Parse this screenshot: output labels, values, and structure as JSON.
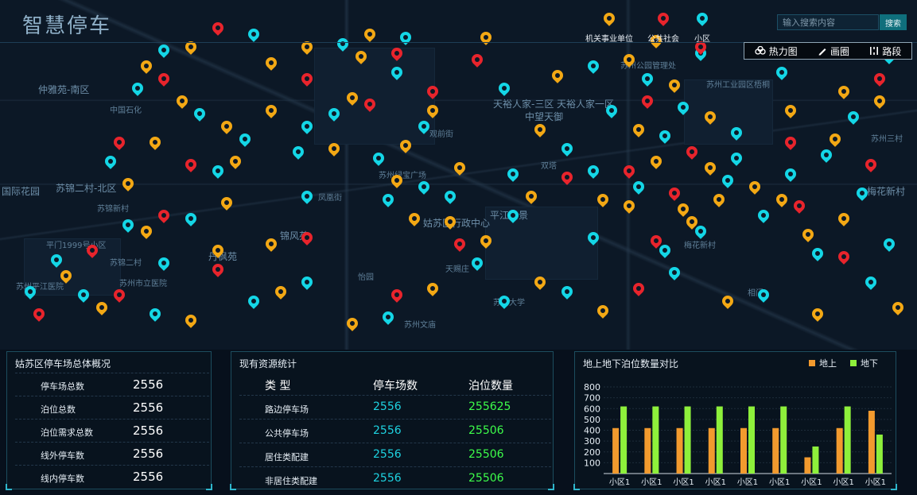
{
  "app": {
    "title": "智慧停车"
  },
  "legend": [
    {
      "label": "机关事业单位",
      "color": "#f3a814"
    },
    {
      "label": "公共社会",
      "color": "#e8242c"
    },
    {
      "label": "小区",
      "color": "#14d6e6"
    }
  ],
  "search": {
    "placeholder": "输入搜索内容",
    "button": "搜索"
  },
  "tools": {
    "heatmap": "热力图",
    "draw": "画圈",
    "route": "路段"
  },
  "map": {
    "labels": [
      "仲雅苑-南区",
      "中国石化",
      "苏锦二村-北区",
      "国际花园",
      "苏锦新村",
      "平门1999号小区",
      "苏锦二村",
      "苏州平江医院",
      "天裕人家-三区",
      "天裕人家一区",
      "中望天御",
      "苏州公园管理处",
      "苏州工业园区梧桐",
      "梅花新村",
      "苏州三村",
      "平江怡景",
      "姑苏区行政中心",
      "锦风苑",
      "丹枫苑",
      "苏州绿宝广场",
      "苏州市立医院",
      "天赐庄",
      "梅花新村",
      "苏州大学",
      "相门",
      "苏州文庙",
      "凤凰街",
      "怡园",
      "观前街",
      "双塔"
    ],
    "pins": [
      {
        "type": "y",
        "lng": 0.23,
        "lat": 0.72
      },
      {
        "type": "r",
        "lng": 0.23,
        "lat": 0.78
      },
      {
        "type": "c",
        "lng": 0.17,
        "lat": 0.76
      },
      {
        "type": "y",
        "lng": 0.29,
        "lat": 0.7
      },
      {
        "type": "y",
        "lng": 0.15,
        "lat": 0.66
      },
      {
        "type": "c",
        "lng": 0.13,
        "lat": 0.64
      },
      {
        "type": "r",
        "lng": 0.17,
        "lat": 0.61
      },
      {
        "type": "y",
        "lng": 0.24,
        "lat": 0.57
      },
      {
        "type": "c",
        "lng": 0.2,
        "lat": 0.62
      },
      {
        "type": "y",
        "lng": 0.13,
        "lat": 0.51
      },
      {
        "type": "c",
        "lng": 0.11,
        "lat": 0.44
      },
      {
        "type": "r",
        "lng": 0.12,
        "lat": 0.38
      },
      {
        "type": "y",
        "lng": 0.16,
        "lat": 0.38
      },
      {
        "type": "c",
        "lng": 0.23,
        "lat": 0.47
      },
      {
        "type": "r",
        "lng": 0.2,
        "lat": 0.45
      },
      {
        "type": "y",
        "lng": 0.25,
        "lat": 0.44
      },
      {
        "type": "c",
        "lng": 0.26,
        "lat": 0.37
      },
      {
        "type": "c",
        "lng": 0.33,
        "lat": 0.33
      },
      {
        "type": "y",
        "lng": 0.29,
        "lat": 0.28
      },
      {
        "type": "r",
        "lng": 0.33,
        "lat": 0.18
      },
      {
        "type": "y",
        "lng": 0.29,
        "lat": 0.13
      },
      {
        "type": "c",
        "lng": 0.32,
        "lat": 0.41
      },
      {
        "type": "y",
        "lng": 0.36,
        "lat": 0.4
      },
      {
        "type": "c",
        "lng": 0.33,
        "lat": 0.55
      },
      {
        "type": "r",
        "lng": 0.33,
        "lat": 0.68
      },
      {
        "type": "c",
        "lng": 0.36,
        "lat": 0.29
      },
      {
        "type": "y",
        "lng": 0.38,
        "lat": 0.24
      },
      {
        "type": "r",
        "lng": 0.4,
        "lat": 0.26
      },
      {
        "type": "c",
        "lng": 0.41,
        "lat": 0.43
      },
      {
        "type": "y",
        "lng": 0.43,
        "lat": 0.5
      },
      {
        "type": "c",
        "lng": 0.42,
        "lat": 0.56
      },
      {
        "type": "y",
        "lng": 0.45,
        "lat": 0.62
      },
      {
        "type": "c",
        "lng": 0.46,
        "lat": 0.52
      },
      {
        "type": "y",
        "lng": 0.44,
        "lat": 0.39
      },
      {
        "type": "c",
        "lng": 0.46,
        "lat": 0.33
      },
      {
        "type": "y",
        "lng": 0.47,
        "lat": 0.28
      },
      {
        "type": "r",
        "lng": 0.47,
        "lat": 0.22
      },
      {
        "type": "y",
        "lng": 0.5,
        "lat": 0.46
      },
      {
        "type": "c",
        "lng": 0.49,
        "lat": 0.55
      },
      {
        "type": "y",
        "lng": 0.49,
        "lat": 0.63
      },
      {
        "type": "r",
        "lng": 0.5,
        "lat": 0.7
      },
      {
        "type": "c",
        "lng": 0.52,
        "lat": 0.76
      },
      {
        "type": "y",
        "lng": 0.53,
        "lat": 0.69
      },
      {
        "type": "c",
        "lng": 0.56,
        "lat": 0.61
      },
      {
        "type": "y",
        "lng": 0.58,
        "lat": 0.55
      },
      {
        "type": "c",
        "lng": 0.56,
        "lat": 0.48
      },
      {
        "type": "r",
        "lng": 0.62,
        "lat": 0.49
      },
      {
        "type": "c",
        "lng": 0.62,
        "lat": 0.4
      },
      {
        "type": "y",
        "lng": 0.59,
        "lat": 0.34
      },
      {
        "type": "c",
        "lng": 0.65,
        "lat": 0.47
      },
      {
        "type": "y",
        "lng": 0.66,
        "lat": 0.56
      },
      {
        "type": "c",
        "lng": 0.65,
        "lat": 0.68
      },
      {
        "type": "y",
        "lng": 0.69,
        "lat": 0.58
      },
      {
        "type": "c",
        "lng": 0.7,
        "lat": 0.52
      },
      {
        "type": "r",
        "lng": 0.69,
        "lat": 0.47
      },
      {
        "type": "y",
        "lng": 0.72,
        "lat": 0.44
      },
      {
        "type": "c",
        "lng": 0.73,
        "lat": 0.36
      },
      {
        "type": "r",
        "lng": 0.74,
        "lat": 0.54
      },
      {
        "type": "y",
        "lng": 0.75,
        "lat": 0.59
      },
      {
        "type": "c",
        "lng": 0.73,
        "lat": 0.72
      },
      {
        "type": "y",
        "lng": 0.76,
        "lat": 0.63
      },
      {
        "type": "r",
        "lng": 0.72,
        "lat": 0.69
      },
      {
        "type": "c",
        "lng": 0.77,
        "lat": 0.66
      },
      {
        "type": "y",
        "lng": 0.79,
        "lat": 0.56
      },
      {
        "type": "c",
        "lng": 0.8,
        "lat": 0.5
      },
      {
        "type": "y",
        "lng": 0.78,
        "lat": 0.46
      },
      {
        "type": "r",
        "lng": 0.76,
        "lat": 0.41
      },
      {
        "type": "c",
        "lng": 0.81,
        "lat": 0.43
      },
      {
        "type": "y",
        "lng": 0.83,
        "lat": 0.52
      },
      {
        "type": "c",
        "lng": 0.84,
        "lat": 0.61
      },
      {
        "type": "y",
        "lng": 0.86,
        "lat": 0.56
      },
      {
        "type": "c",
        "lng": 0.87,
        "lat": 0.48
      },
      {
        "type": "r",
        "lng": 0.88,
        "lat": 0.58
      },
      {
        "type": "y",
        "lng": 0.89,
        "lat": 0.67
      },
      {
        "type": "c",
        "lng": 0.9,
        "lat": 0.73
      },
      {
        "type": "y",
        "lng": 0.93,
        "lat": 0.62
      },
      {
        "type": "c",
        "lng": 0.95,
        "lat": 0.54
      },
      {
        "type": "r",
        "lng": 0.96,
        "lat": 0.45
      },
      {
        "type": "y",
        "lng": 0.92,
        "lat": 0.37
      },
      {
        "type": "c",
        "lng": 0.94,
        "lat": 0.3
      },
      {
        "type": "y",
        "lng": 0.97,
        "lat": 0.25
      },
      {
        "type": "r",
        "lng": 0.97,
        "lat": 0.18
      },
      {
        "type": "c",
        "lng": 0.98,
        "lat": 0.11
      },
      {
        "type": "y",
        "lng": 0.93,
        "lat": 0.22
      },
      {
        "type": "c",
        "lng": 0.91,
        "lat": 0.42
      },
      {
        "type": "y",
        "lng": 0.87,
        "lat": 0.28
      },
      {
        "type": "r",
        "lng": 0.87,
        "lat": 0.38
      },
      {
        "type": "c",
        "lng": 0.86,
        "lat": 0.16
      },
      {
        "type": "y",
        "lng": 0.9,
        "lat": 0.09
      },
      {
        "type": "c",
        "lng": 0.81,
        "lat": 0.35
      },
      {
        "type": "y",
        "lng": 0.78,
        "lat": 0.3
      },
      {
        "type": "c",
        "lng": 0.75,
        "lat": 0.27
      },
      {
        "type": "y",
        "lng": 0.7,
        "lat": 0.34
      },
      {
        "type": "r",
        "lng": 0.71,
        "lat": 0.25
      },
      {
        "type": "c",
        "lng": 0.71,
        "lat": 0.18
      },
      {
        "type": "y",
        "lng": 0.69,
        "lat": 0.12
      },
      {
        "type": "c",
        "lng": 0.67,
        "lat": 0.28
      },
      {
        "type": "y",
        "lng": 0.74,
        "lat": 0.2
      },
      {
        "type": "c",
        "lng": 0.77,
        "lat": 0.1
      },
      {
        "type": "r",
        "lng": 0.77,
        "lat": 0.08
      },
      {
        "type": "y",
        "lng": 0.72,
        "lat": 0.06
      },
      {
        "type": "c",
        "lng": 0.65,
        "lat": 0.14
      },
      {
        "type": "y",
        "lng": 0.61,
        "lat": 0.17
      },
      {
        "type": "c",
        "lng": 0.55,
        "lat": 0.21
      },
      {
        "type": "r",
        "lng": 0.52,
        "lat": 0.12
      },
      {
        "type": "y",
        "lng": 0.53,
        "lat": 0.05
      },
      {
        "type": "c",
        "lng": 0.44,
        "lat": 0.05
      },
      {
        "type": "y",
        "lng": 0.4,
        "lat": 0.04
      },
      {
        "type": "r",
        "lng": 0.43,
        "lat": 0.1
      },
      {
        "type": "c",
        "lng": 0.43,
        "lat": 0.16
      },
      {
        "type": "y",
        "lng": 0.39,
        "lat": 0.11
      },
      {
        "type": "c",
        "lng": 0.37,
        "lat": 0.07
      },
      {
        "type": "y",
        "lng": 0.33,
        "lat": 0.08
      },
      {
        "type": "c",
        "lng": 0.27,
        "lat": 0.04
      },
      {
        "type": "r",
        "lng": 0.23,
        "lat": 0.02
      },
      {
        "type": "y",
        "lng": 0.2,
        "lat": 0.08
      },
      {
        "type": "c",
        "lng": 0.17,
        "lat": 0.09
      },
      {
        "type": "y",
        "lng": 0.15,
        "lat": 0.14
      },
      {
        "type": "c",
        "lng": 0.14,
        "lat": 0.21
      },
      {
        "type": "r",
        "lng": 0.17,
        "lat": 0.18
      },
      {
        "type": "y",
        "lng": 0.19,
        "lat": 0.25
      },
      {
        "type": "c",
        "lng": 0.21,
        "lat": 0.29
      },
      {
        "type": "y",
        "lng": 0.24,
        "lat": 0.33
      },
      {
        "type": "r",
        "lng": 0.03,
        "lat": 0.92
      },
      {
        "type": "c",
        "lng": 0.02,
        "lat": 0.85
      },
      {
        "type": "y",
        "lng": 0.06,
        "lat": 0.8
      },
      {
        "type": "c",
        "lng": 0.08,
        "lat": 0.86
      },
      {
        "type": "y",
        "lng": 0.1,
        "lat": 0.9
      },
      {
        "type": "c",
        "lng": 0.05,
        "lat": 0.75
      },
      {
        "type": "r",
        "lng": 0.09,
        "lat": 0.72
      },
      {
        "type": "c",
        "lng": 0.27,
        "lat": 0.88
      },
      {
        "type": "y",
        "lng": 0.3,
        "lat": 0.85
      },
      {
        "type": "c",
        "lng": 0.33,
        "lat": 0.82
      },
      {
        "type": "r",
        "lng": 0.43,
        "lat": 0.86
      },
      {
        "type": "y",
        "lng": 0.47,
        "lat": 0.84
      },
      {
        "type": "c",
        "lng": 0.55,
        "lat": 0.88
      },
      {
        "type": "y",
        "lng": 0.59,
        "lat": 0.82
      },
      {
        "type": "c",
        "lng": 0.62,
        "lat": 0.85
      },
      {
        "type": "y",
        "lng": 0.66,
        "lat": 0.91
      },
      {
        "type": "r",
        "lng": 0.7,
        "lat": 0.84
      },
      {
        "type": "c",
        "lng": 0.74,
        "lat": 0.79
      },
      {
        "type": "y",
        "lng": 0.8,
        "lat": 0.88
      },
      {
        "type": "c",
        "lng": 0.84,
        "lat": 0.86
      },
      {
        "type": "y",
        "lng": 0.9,
        "lat": 0.92
      },
      {
        "type": "c",
        "lng": 0.96,
        "lat": 0.82
      },
      {
        "type": "y",
        "lng": 0.99,
        "lat": 0.9
      },
      {
        "type": "r",
        "lng": 0.93,
        "lat": 0.74
      },
      {
        "type": "c",
        "lng": 0.98,
        "lat": 0.7
      },
      {
        "type": "y",
        "lng": 0.2,
        "lat": 0.94
      },
      {
        "type": "c",
        "lng": 0.16,
        "lat": 0.92
      },
      {
        "type": "r",
        "lng": 0.12,
        "lat": 0.86
      },
      {
        "type": "y",
        "lng": 0.38,
        "lat": 0.95
      },
      {
        "type": "c",
        "lng": 0.42,
        "lat": 0.93
      }
    ]
  },
  "overview": {
    "title": "姑苏区停车场总体概况",
    "rows": [
      {
        "label": "停车场总数",
        "value": "2556"
      },
      {
        "label": "泊位总数",
        "value": "2556"
      },
      {
        "label": "泊位需求总数",
        "value": "2556"
      },
      {
        "label": "线外停车数",
        "value": "2556"
      },
      {
        "label": "线内停车数",
        "value": "2556"
      }
    ]
  },
  "resources": {
    "title": "现有资源统计",
    "headers": [
      "类 型",
      "停车场数",
      "泊位数量"
    ],
    "rows": [
      {
        "type": "路边停车场",
        "lots": "2556",
        "spaces": "255625"
      },
      {
        "type": "公共停车场",
        "lots": "2556",
        "spaces": "25506"
      },
      {
        "type": "居住类配建",
        "lots": "2556",
        "spaces": "25506"
      },
      {
        "type": "非居住类配建",
        "lots": "2556",
        "spaces": "25506"
      }
    ]
  },
  "comparison": {
    "title": "地上地下泊位数量对比",
    "chart_data": {
      "type": "bar",
      "categories": [
        "小区1",
        "小区1",
        "小区1",
        "小区1",
        "小区1",
        "小区1",
        "小区1",
        "小区1",
        "小区1"
      ],
      "series": [
        {
          "name": "地上",
          "color": "#f29a2e",
          "values": [
            420,
            420,
            420,
            420,
            420,
            420,
            150,
            420,
            580
          ]
        },
        {
          "name": "地下",
          "color": "#8ef03b",
          "values": [
            620,
            620,
            620,
            620,
            620,
            620,
            250,
            620,
            360
          ]
        }
      ],
      "ylim": [
        0,
        800
      ],
      "yticks": [
        100,
        200,
        300,
        400,
        500,
        600,
        700,
        800
      ],
      "legend": "top-right"
    }
  }
}
